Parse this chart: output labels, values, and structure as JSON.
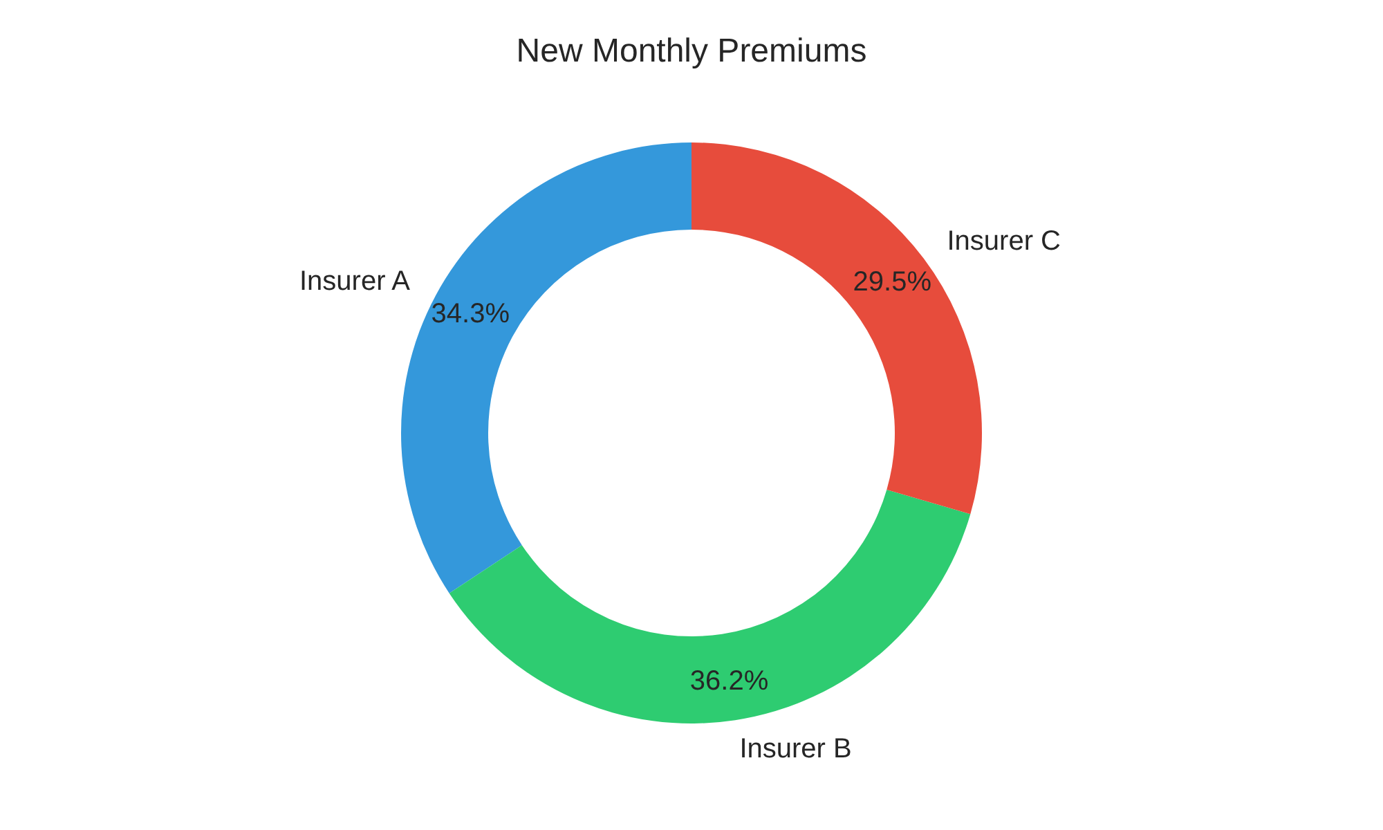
{
  "chart_data": {
    "type": "donut",
    "title": "New Monthly Premiums",
    "categories": [
      "Insurer A",
      "Insurer B",
      "Insurer C"
    ],
    "values": [
      34.3,
      36.2,
      29.5
    ],
    "colors": [
      "#3498db",
      "#2ecc71",
      "#e74c3c"
    ],
    "value_labels": [
      "34.3%",
      "36.2%",
      "29.5%"
    ],
    "legend": false
  }
}
